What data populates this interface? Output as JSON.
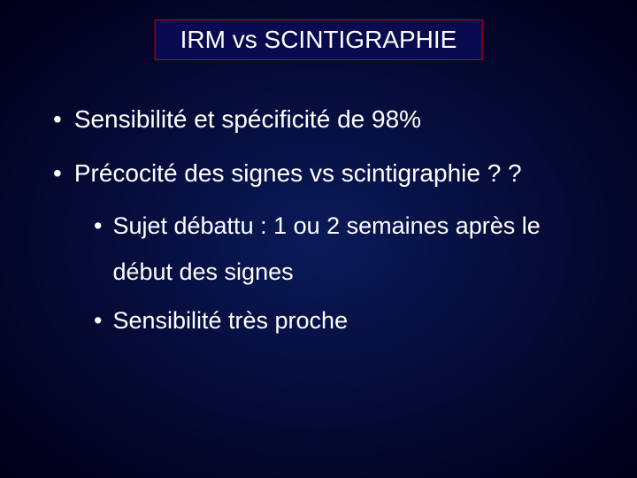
{
  "slide": {
    "title": "IRM vs SCINTIGRAPHIE",
    "title_box": {
      "bg": "#0a0a50",
      "border_color": "#cc0000",
      "text_color": "#ffffff",
      "font_size_pt": 28
    },
    "background": {
      "center": "#0a1a5a",
      "mid": "#050830",
      "edge": "#000018"
    },
    "bullets_l1": [
      "Sensibilité et spécificité de 98%",
      "Précocité des signes vs scintigraphie ? ?"
    ],
    "bullets_l2": [
      "Sujet débattu : 1 ou 2 semaines après le début des signes",
      "Sensibilité très proche"
    ],
    "text_color": "#ffffff",
    "l1_font_size_pt": 28,
    "l2_font_size_pt": 27,
    "bullet_marker": "•"
  }
}
